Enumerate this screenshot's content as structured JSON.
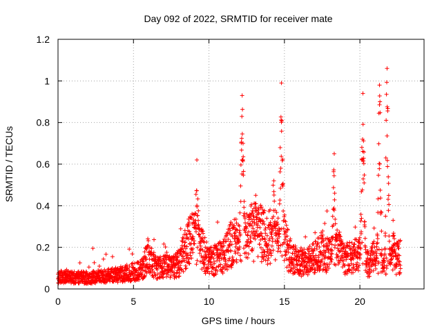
{
  "chart_data": {
    "type": "scatter",
    "title": "Day 092 of 2022, SRMTID for receiver mate",
    "xlabel": "GPS time / hours",
    "ylabel": "SRMTID / TECUs",
    "xlim": [
      0,
      24.25
    ],
    "ylim": [
      0,
      1.2
    ],
    "xticks": [
      0,
      5,
      10,
      15,
      20
    ],
    "xtick_labels": [
      "0",
      "5",
      "10",
      "15",
      "20"
    ],
    "yticks": [
      0,
      0.2,
      0.4,
      0.6,
      0.8,
      1.0,
      1.2
    ],
    "ytick_labels": [
      "0",
      "0.2",
      "0.4",
      "0.6",
      "0.8",
      "1",
      "1.2"
    ],
    "grid": true,
    "marker": "+",
    "color": "#ff0000",
    "series": [
      {
        "name": "SRMTID",
        "x_start": 0.0,
        "x_end": 22.7,
        "sample_interval_hours": 0.01,
        "baseline_profile": [
          {
            "x": 0.0,
            "y": 0.06
          },
          {
            "x": 2.0,
            "y": 0.055
          },
          {
            "x": 4.0,
            "y": 0.07
          },
          {
            "x": 5.5,
            "y": 0.09
          },
          {
            "x": 6.0,
            "y": 0.17
          },
          {
            "x": 6.5,
            "y": 0.1
          },
          {
            "x": 8.0,
            "y": 0.12
          },
          {
            "x": 8.5,
            "y": 0.22
          },
          {
            "x": 9.0,
            "y": 0.25
          },
          {
            "x": 9.5,
            "y": 0.2
          },
          {
            "x": 10.0,
            "y": 0.13
          },
          {
            "x": 11.0,
            "y": 0.16
          },
          {
            "x": 11.5,
            "y": 0.22
          },
          {
            "x": 12.0,
            "y": 0.24
          },
          {
            "x": 12.5,
            "y": 0.28
          },
          {
            "x": 13.5,
            "y": 0.27
          },
          {
            "x": 14.0,
            "y": 0.22
          },
          {
            "x": 14.5,
            "y": 0.25
          },
          {
            "x": 15.0,
            "y": 0.24
          },
          {
            "x": 15.5,
            "y": 0.14
          },
          {
            "x": 16.5,
            "y": 0.13
          },
          {
            "x": 17.0,
            "y": 0.15
          },
          {
            "x": 17.5,
            "y": 0.19
          },
          {
            "x": 18.0,
            "y": 0.16
          },
          {
            "x": 18.5,
            "y": 0.19
          },
          {
            "x": 19.0,
            "y": 0.15
          },
          {
            "x": 19.5,
            "y": 0.15
          },
          {
            "x": 20.0,
            "y": 0.2
          },
          {
            "x": 20.5,
            "y": 0.12
          },
          {
            "x": 21.0,
            "y": 0.16
          },
          {
            "x": 21.5,
            "y": 0.1
          },
          {
            "x": 22.0,
            "y": 0.13
          },
          {
            "x": 22.7,
            "y": 0.16
          }
        ],
        "peaks": [
          {
            "x": 9.2,
            "y": 0.62
          },
          {
            "x": 12.2,
            "y": 0.93
          },
          {
            "x": 13.1,
            "y": 0.45
          },
          {
            "x": 14.3,
            "y": 0.52
          },
          {
            "x": 14.8,
            "y": 0.99
          },
          {
            "x": 18.3,
            "y": 0.65
          },
          {
            "x": 20.2,
            "y": 0.94
          },
          {
            "x": 21.3,
            "y": 0.98
          },
          {
            "x": 21.8,
            "y": 1.06
          },
          {
            "x": 22.2,
            "y": 0.33
          }
        ]
      }
    ]
  }
}
